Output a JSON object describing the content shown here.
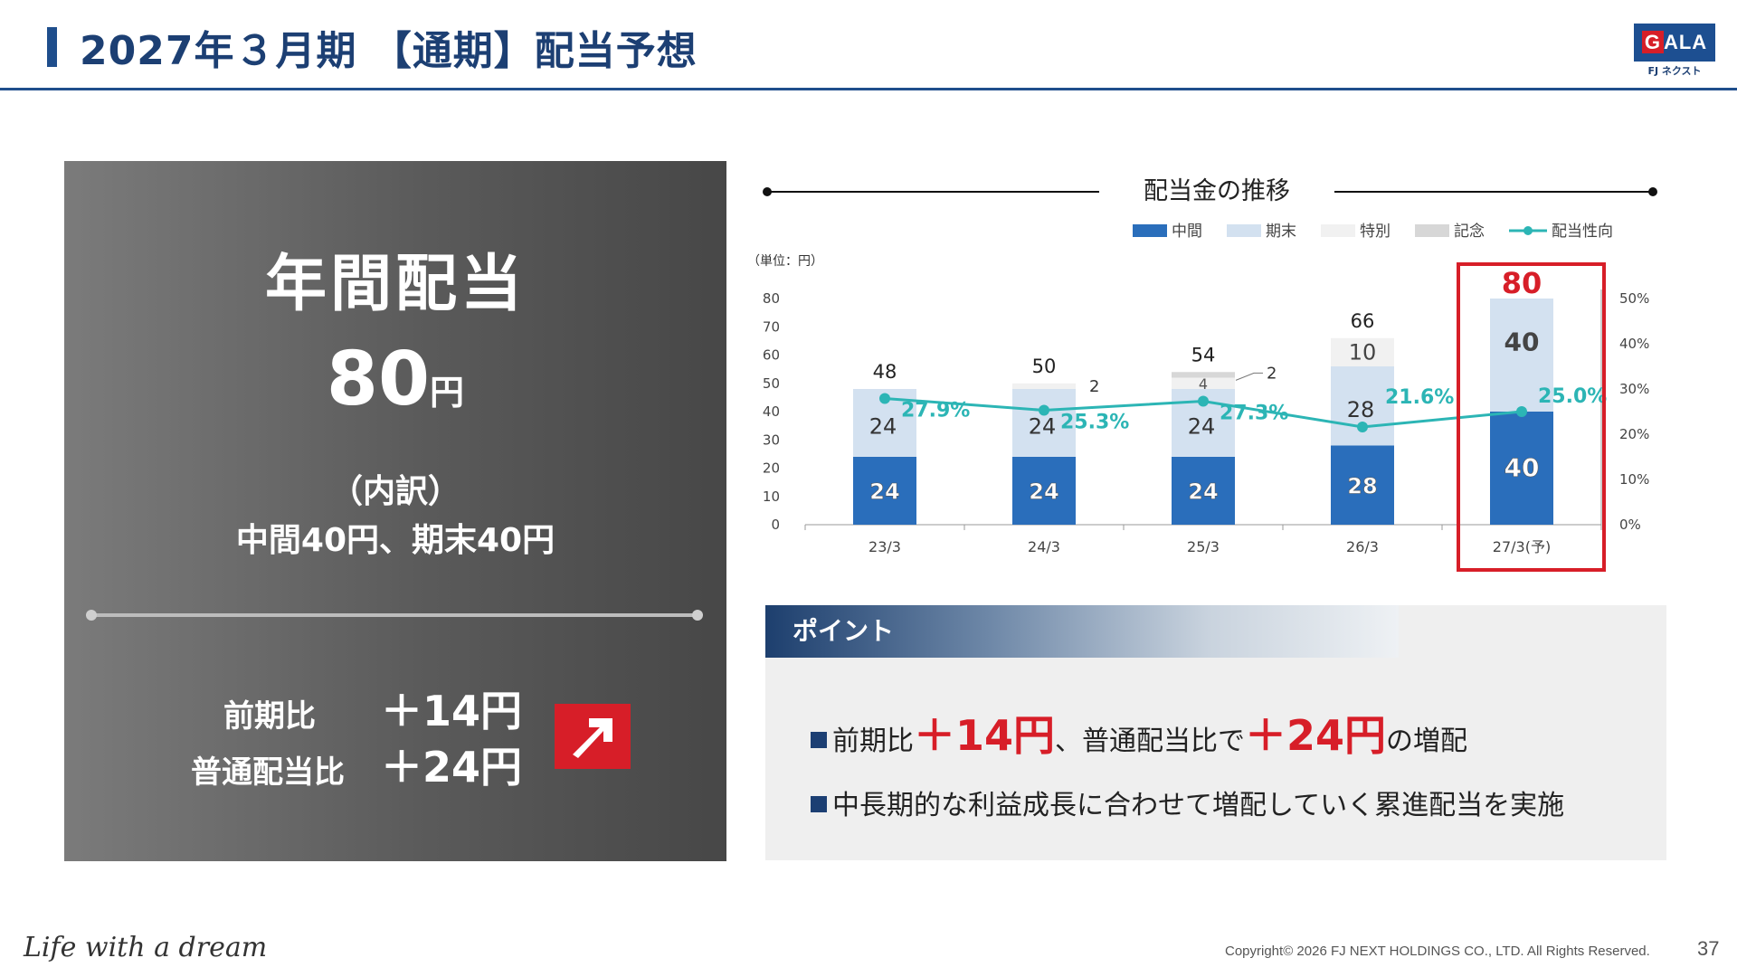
{
  "header": {
    "title": "2027年３月期 【通期】配当予想"
  },
  "logo": {
    "text_g": "G",
    "text_rest": "ALA",
    "sub": "FJ ネクスト"
  },
  "left_panel": {
    "title": "年間配当",
    "amount": "80",
    "amount_unit": "円",
    "breakdown_heading": "（内訳）",
    "breakdown_detail": "中間40円、期末40円",
    "yoy_label": "前期比",
    "yoy_value": "＋14円",
    "ordinary_label": "普通配当比",
    "ordinary_value": "＋24円"
  },
  "chart_data": {
    "type": "bar",
    "title": "配当金の推移",
    "unit_label": "（単位：円）",
    "categories": [
      "23/3",
      "24/3",
      "25/3",
      "26/3",
      "27/3(予)"
    ],
    "series": [
      {
        "name": "中間",
        "values": [
          24,
          24,
          24,
          28,
          40
        ],
        "color": "#2a6ebb"
      },
      {
        "name": "期末",
        "values": [
          24,
          24,
          24,
          28,
          40
        ],
        "color": "#d3e1f0"
      },
      {
        "name": "特別",
        "values": [
          0,
          2,
          4,
          10,
          0
        ],
        "color": "#f1f1f1"
      },
      {
        "name": "記念",
        "values": [
          0,
          0,
          2,
          0,
          0
        ],
        "color": "#d7d7d7"
      }
    ],
    "line_series": {
      "name": "配当性向",
      "values": [
        27.9,
        25.3,
        27.3,
        21.6,
        25.0
      ],
      "labels": [
        "27.9%",
        "25.3%",
        "27.3%",
        "21.6%",
        "25.0%"
      ],
      "color": "#2cb5b5"
    },
    "totals": [
      48,
      50,
      54,
      66,
      80
    ],
    "ylim": [
      0,
      80
    ],
    "yticks": [
      "0",
      "10",
      "20",
      "30",
      "40",
      "50",
      "60",
      "70",
      "80"
    ],
    "y2lim": [
      0,
      50
    ],
    "y2ticks": [
      "0%",
      "10%",
      "20%",
      "30%",
      "40%",
      "50%"
    ],
    "highlight_index": 4,
    "highlight_color": "#d71e28"
  },
  "point": {
    "heading": "ポイント",
    "l1_a": "前期比",
    "l1_b": "＋14円",
    "l1_c": "、普通配当比で",
    "l1_d": "＋24円",
    "l1_e": "の増配",
    "l2": "中長期的な利益成長に合わせて増配していく累進配当を実施"
  },
  "footer": {
    "slogan": "Life with a dream",
    "copyright": "Copyright© 2026 FJ NEXT HOLDINGS CO., LTD. All Rights Reserved.",
    "page": "37"
  }
}
